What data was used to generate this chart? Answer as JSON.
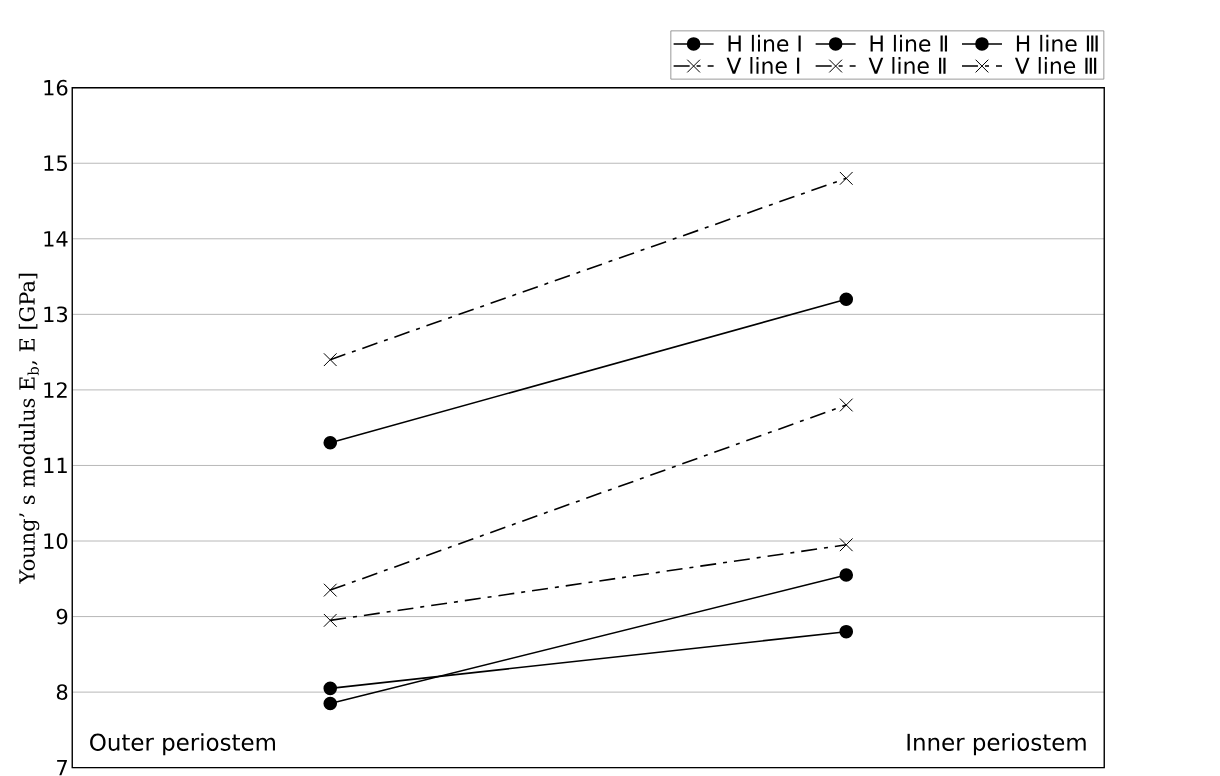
{
  "chart_data": {
    "type": "line",
    "ylabel": "Young’ s modulus E$_{b}$, E [GPa]",
    "categories": [
      null,
      null
    ],
    "ylim": [
      7,
      16
    ],
    "yticks": [
      7,
      8,
      9,
      10,
      11,
      12,
      13,
      14,
      15,
      16
    ],
    "grid": "y",
    "legend": "top right",
    "series": [
      {
        "name": "H line Ⅰ",
        "color": "#000000",
        "marker": "circle",
        "line_style": "solid",
        "values": [
          11.3,
          13.2
        ]
      },
      {
        "name": "H line Ⅱ",
        "color": "#000000",
        "marker": "circle",
        "line_style": "solid",
        "values": [
          7.85,
          9.55
        ]
      },
      {
        "name": "H line Ⅲ",
        "color": "#000000",
        "marker": "circle",
        "line_style": "solid",
        "values": [
          8.05,
          8.8
        ]
      },
      {
        "name": "V line Ⅰ",
        "color": "#000000",
        "marker": "cross",
        "line_style": "dashed",
        "values": [
          12.4,
          14.8
        ]
      },
      {
        "name": "V line Ⅱ",
        "color": "#000000",
        "marker": "cross",
        "line_style": "dashed",
        "values": [
          9.35,
          11.8
        ]
      },
      {
        "name": "V line Ⅲ",
        "color": "#000000",
        "marker": "cross",
        "line_style": "dashed",
        "values": [
          8.95,
          9.95
        ]
      }
    ],
    "annotations": [
      "Outer periostem",
      "Inner periostem"
    ]
  }
}
